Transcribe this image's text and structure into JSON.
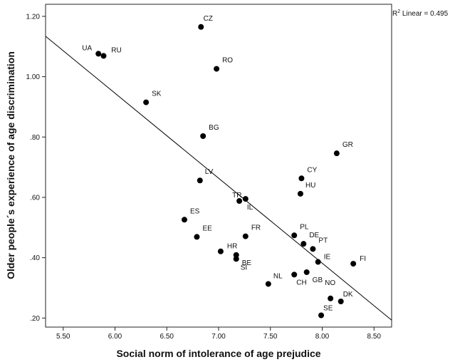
{
  "chart_data": {
    "type": "scatter",
    "xlabel": "Social norm of intolerance of age prejudice",
    "ylabel": "Older people´s experience of age discrimination",
    "xlim": [
      5.33,
      8.67
    ],
    "ylim": [
      0.17,
      1.24
    ],
    "x_ticks": [
      "5.50",
      "6.00",
      "6.50",
      "7.00",
      "7.50",
      "8.00",
      "8.50"
    ],
    "y_ticks": [
      ".20",
      ".40",
      ".60",
      ".80",
      "1.00",
      "1.20"
    ],
    "x_tick_values": [
      5.5,
      6.0,
      6.5,
      7.0,
      7.5,
      8.0,
      8.5
    ],
    "y_tick_values": [
      0.2,
      0.4,
      0.6,
      0.8,
      1.0,
      1.2
    ],
    "grid": false,
    "marker_color": "#000000",
    "line_color": "#000000",
    "fit_line": {
      "label_prefix": "R",
      "label_exp": "2",
      "label_suffix": " Linear = 0.495",
      "x": [
        5.33,
        8.67
      ],
      "y": [
        1.134,
        0.193
      ]
    },
    "points": [
      {
        "label": "CZ",
        "x": 6.83,
        "y": 1.165
      },
      {
        "label": "UA",
        "x": 5.84,
        "y": 1.076
      },
      {
        "label": "RU",
        "x": 5.89,
        "y": 1.069
      },
      {
        "label": "RO",
        "x": 6.98,
        "y": 1.026
      },
      {
        "label": "SK",
        "x": 6.3,
        "y": 0.915
      },
      {
        "label": "BG",
        "x": 6.85,
        "y": 0.803
      },
      {
        "label": "GR",
        "x": 8.14,
        "y": 0.746
      },
      {
        "label": "CY",
        "x": 7.8,
        "y": 0.663
      },
      {
        "label": "LV",
        "x": 6.82,
        "y": 0.656
      },
      {
        "label": "HU",
        "x": 7.79,
        "y": 0.612
      },
      {
        "label": "TR",
        "x": 7.2,
        "y": 0.588
      },
      {
        "label": "IL",
        "x": 7.26,
        "y": 0.595
      },
      {
        "label": "ES",
        "x": 6.67,
        "y": 0.526
      },
      {
        "label": "EE",
        "x": 6.79,
        "y": 0.469
      },
      {
        "label": "FR",
        "x": 7.26,
        "y": 0.471
      },
      {
        "label": "PL",
        "x": 7.73,
        "y": 0.474
      },
      {
        "label": "DE",
        "x": 7.82,
        "y": 0.446
      },
      {
        "label": "PT",
        "x": 7.91,
        "y": 0.429
      },
      {
        "label": "HR",
        "x": 7.02,
        "y": 0.421
      },
      {
        "label": "BE",
        "x": 7.17,
        "y": 0.409
      },
      {
        "label": "SI",
        "x": 7.17,
        "y": 0.396
      },
      {
        "label": "IE",
        "x": 7.96,
        "y": 0.386
      },
      {
        "label": "FI",
        "x": 8.3,
        "y": 0.38
      },
      {
        "label": "GB",
        "x": 7.85,
        "y": 0.352
      },
      {
        "label": "CH",
        "x": 7.73,
        "y": 0.344
      },
      {
        "label": "NL",
        "x": 7.48,
        "y": 0.313
      },
      {
        "label": "NO",
        "x": 8.08,
        "y": 0.265
      },
      {
        "label": "DK",
        "x": 8.18,
        "y": 0.255
      },
      {
        "label": "SE",
        "x": 7.99,
        "y": 0.209
      }
    ]
  }
}
